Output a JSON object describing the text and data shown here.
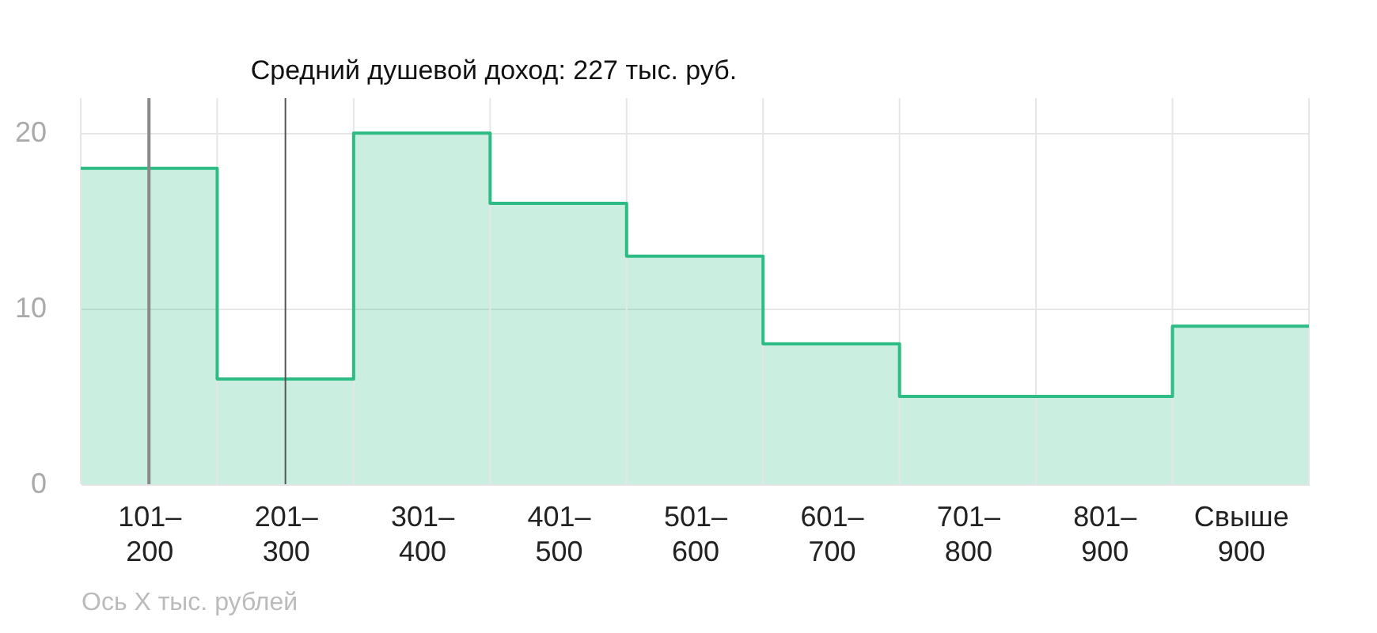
{
  "chart_data": {
    "type": "bar",
    "xlabel": "Ось X тыс. рублей",
    "categories": [
      "101– 200",
      "201– 300",
      "301– 400",
      "401– 500",
      "501– 600",
      "601– 700",
      "701– 800",
      "801– 900",
      "Свыше 900"
    ],
    "values": [
      18,
      6,
      20,
      16,
      13,
      8,
      5,
      5,
      9
    ],
    "color": "#2dbd84",
    "ylim": [
      0,
      22
    ],
    "yticks": [
      0,
      10,
      20
    ],
    "grid": true,
    "ref_lines": [
      {
        "axis": "x",
        "value": "101– 200",
        "color": "#8a8a8a"
      },
      {
        "axis": "x",
        "value": "201– 300",
        "label": "Средний душевой доход: 227 тыс. руб.",
        "color": "#555555"
      }
    ]
  }
}
